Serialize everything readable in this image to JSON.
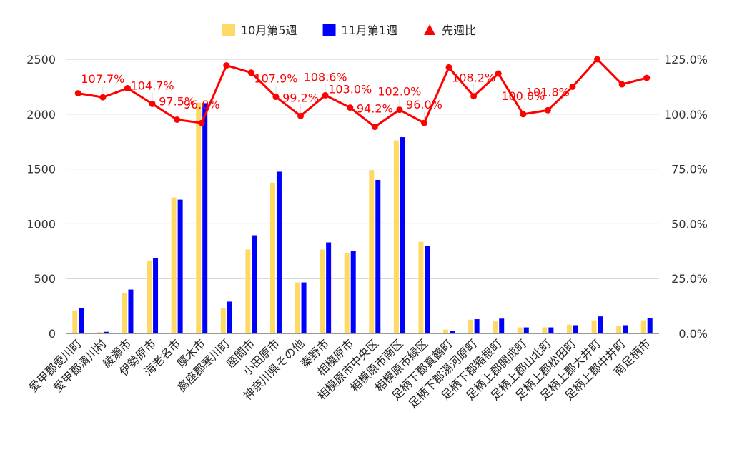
{
  "chart_data": {
    "type": "bar",
    "categories": [
      "愛甲郡愛川町",
      "愛甲郡清川村",
      "綾瀬市",
      "伊勢原市",
      "海老名市",
      "厚木市",
      "高座郡寒川町",
      "座間市",
      "小田原市",
      "神奈川県その他",
      "秦野市",
      "相模原市",
      "相模原市中央区",
      "相模原市南区",
      "相模原市緑区",
      "足柄下郡真鶴町",
      "足柄下郡湯河原町",
      "足柄下郡箱根町",
      "足柄上郡開成町",
      "足柄上郡山北町",
      "足柄上郡松田町",
      "足柄上郡大井町",
      "足柄上郡中井町",
      "南足柄市"
    ],
    "series": [
      {
        "name": "10月第5週",
        "type": "bar",
        "axis": "left",
        "color": "#ffd966",
        "values": [
          210,
          12,
          365,
          665,
          1240,
          2105,
          232,
          765,
          1375,
          465,
          765,
          730,
          1490,
          1760,
          835,
          35,
          125,
          110,
          55,
          55,
          80,
          120,
          70,
          120
        ]
      },
      {
        "name": "11月第1週",
        "type": "bar",
        "axis": "left",
        "color": "#0000ff",
        "values": [
          230,
          15,
          400,
          690,
          1220,
          2100,
          290,
          895,
          1475,
          465,
          830,
          755,
          1400,
          1790,
          800,
          25,
          130,
          135,
          55,
          55,
          75,
          155,
          75,
          140
        ]
      },
      {
        "name": "先週比",
        "type": "line",
        "axis": "right",
        "color": "#ff0000",
        "values": [
          109.5,
          107.7,
          111.8,
          104.7,
          97.5,
          96.0,
          122.2,
          118.9,
          107.9,
          99.2,
          108.6,
          103.0,
          94.2,
          102.0,
          96.0,
          121.3,
          108.2,
          118.5,
          100.0,
          101.8,
          112.5,
          125.0,
          113.6,
          116.5
        ]
      }
    ],
    "data_labels": [
      {
        "index": 1,
        "text": "107.7%"
      },
      {
        "index": 3,
        "text": "104.7%"
      },
      {
        "index": 4,
        "text": "97.5%"
      },
      {
        "index": 5,
        "text": "96.0%"
      },
      {
        "index": 8,
        "text": "107.9%"
      },
      {
        "index": 9,
        "text": "99.2%"
      },
      {
        "index": 10,
        "text": "108.6%"
      },
      {
        "index": 11,
        "text": "103.0%"
      },
      {
        "index": 12,
        "text": "94.2%"
      },
      {
        "index": 13,
        "text": "102.0%"
      },
      {
        "index": 14,
        "text": "96.0%"
      },
      {
        "index": 16,
        "text": "108.2%"
      },
      {
        "index": 18,
        "text": "100.0%"
      },
      {
        "index": 19,
        "text": "101.8%"
      }
    ],
    "ylim_left": [
      0,
      2500
    ],
    "yticks_left": [
      0,
      500,
      1000,
      1500,
      2000,
      2500
    ],
    "ylim_right": [
      0,
      125
    ],
    "yticks_right": [
      "0.0%",
      "25.0%",
      "50.0%",
      "75.0%",
      "100.0%",
      "125.0%"
    ],
    "title": "",
    "xlabel": "",
    "ylabel": "",
    "legend_position": "top",
    "grid": true
  }
}
